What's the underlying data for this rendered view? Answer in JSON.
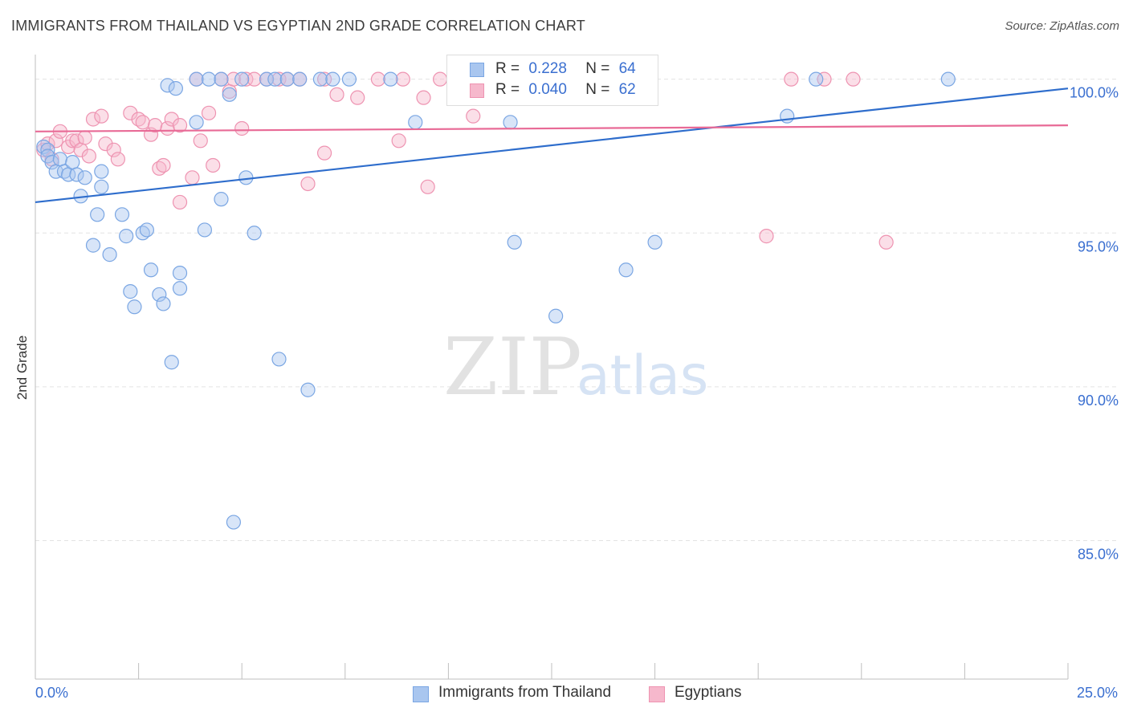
{
  "title": "IMMIGRANTS FROM THAILAND VS EGYPTIAN 2ND GRADE CORRELATION CHART",
  "source": "Source: ZipAtlas.com",
  "watermark": {
    "zip": "ZIP",
    "atlas": "atlas"
  },
  "legend": {
    "rows": [
      {
        "r_label": "R =",
        "r_value": "0.228",
        "n_label": "N =",
        "n_value": "64"
      },
      {
        "r_label": "R =",
        "r_value": "0.040",
        "n_label": "N =",
        "n_value": "62"
      }
    ]
  },
  "bottom_legend": [
    "Immigrants from Thailand",
    "Egyptians"
  ],
  "colors": {
    "thailand_fill": "#a9c6ef",
    "thailand_stroke": "#7aa6e3",
    "thailand_line": "#2e6dcc",
    "egypt_fill": "#f6b8cc",
    "egypt_stroke": "#ee93b1",
    "egypt_line": "#e86a96",
    "axis_text": "#3a6fd0",
    "grid": "#e3e3e3"
  },
  "chart_data": {
    "type": "scatter",
    "title": "IMMIGRANTS FROM THAILAND VS EGYPTIAN 2ND GRADE CORRELATION CHART",
    "xlabel": "",
    "ylabel": "2nd Grade",
    "xlim": [
      0,
      25
    ],
    "ylim": [
      80.5,
      100.8
    ],
    "x_tick_labels": [
      "0.0%",
      "25.0%"
    ],
    "y_ticks": [
      85,
      90,
      95,
      100
    ],
    "y_tick_labels": [
      "85.0%",
      "90.0%",
      "95.0%",
      "100.0%"
    ],
    "series": [
      {
        "name": "Immigrants from Thailand",
        "R": 0.228,
        "N": 64,
        "trend": [
          [
            0,
            96.0
          ],
          [
            25,
            99.7
          ]
        ],
        "points": [
          [
            0.2,
            97.8
          ],
          [
            0.3,
            97.7
          ],
          [
            0.3,
            97.5
          ],
          [
            0.4,
            97.3
          ],
          [
            0.5,
            97.0
          ],
          [
            0.6,
            97.4
          ],
          [
            0.7,
            97.0
          ],
          [
            0.8,
            96.9
          ],
          [
            0.9,
            97.3
          ],
          [
            1.0,
            96.9
          ],
          [
            1.2,
            96.8
          ],
          [
            1.1,
            96.2
          ],
          [
            1.6,
            96.5
          ],
          [
            1.6,
            97.0
          ],
          [
            1.5,
            95.6
          ],
          [
            2.1,
            95.6
          ],
          [
            1.4,
            94.6
          ],
          [
            1.8,
            94.3
          ],
          [
            2.2,
            94.9
          ],
          [
            2.6,
            95.0
          ],
          [
            2.7,
            95.1
          ],
          [
            2.8,
            93.8
          ],
          [
            3.5,
            93.7
          ],
          [
            3.5,
            93.2
          ],
          [
            2.3,
            93.1
          ],
          [
            3.0,
            93.0
          ],
          [
            2.4,
            92.6
          ],
          [
            3.1,
            92.7
          ],
          [
            3.3,
            90.8
          ],
          [
            4.1,
            95.1
          ],
          [
            4.5,
            96.1
          ],
          [
            5.3,
            95.0
          ],
          [
            5.1,
            96.8
          ],
          [
            3.9,
            98.6
          ],
          [
            3.2,
            99.8
          ],
          [
            3.4,
            99.7
          ],
          [
            3.9,
            100.0
          ],
          [
            4.2,
            100.0
          ],
          [
            4.7,
            99.5
          ],
          [
            4.5,
            100.0
          ],
          [
            5.0,
            100.0
          ],
          [
            5.6,
            100.0
          ],
          [
            5.8,
            100.0
          ],
          [
            6.1,
            100.0
          ],
          [
            6.4,
            100.0
          ],
          [
            6.9,
            100.0
          ],
          [
            7.2,
            100.0
          ],
          [
            7.6,
            100.0
          ],
          [
            8.6,
            100.0
          ],
          [
            10.4,
            100.0
          ],
          [
            12.0,
            100.0
          ],
          [
            13.3,
            100.0
          ],
          [
            9.2,
            98.6
          ],
          [
            11.5,
            98.6
          ],
          [
            5.9,
            90.9
          ],
          [
            6.6,
            89.9
          ],
          [
            4.8,
            85.6
          ],
          [
            11.6,
            94.7
          ],
          [
            15.0,
            94.7
          ],
          [
            14.3,
            93.8
          ],
          [
            12.6,
            92.3
          ],
          [
            18.2,
            98.8
          ],
          [
            18.9,
            100.0
          ],
          [
            22.1,
            100.0
          ]
        ]
      },
      {
        "name": "Egyptians",
        "R": 0.04,
        "N": 62,
        "trend": [
          [
            0,
            98.3
          ],
          [
            25,
            98.5
          ]
        ],
        "points": [
          [
            0.2,
            97.7
          ],
          [
            0.3,
            97.9
          ],
          [
            0.4,
            97.4
          ],
          [
            0.5,
            98.0
          ],
          [
            0.6,
            98.3
          ],
          [
            0.8,
            97.8
          ],
          [
            0.9,
            98.0
          ],
          [
            1.0,
            98.0
          ],
          [
            1.1,
            97.7
          ],
          [
            1.2,
            98.1
          ],
          [
            1.3,
            97.5
          ],
          [
            1.4,
            98.7
          ],
          [
            1.6,
            98.8
          ],
          [
            1.7,
            97.9
          ],
          [
            1.9,
            97.7
          ],
          [
            2.0,
            97.4
          ],
          [
            2.3,
            98.9
          ],
          [
            2.5,
            98.7
          ],
          [
            2.6,
            98.6
          ],
          [
            2.8,
            98.2
          ],
          [
            2.9,
            98.5
          ],
          [
            3.0,
            97.1
          ],
          [
            3.1,
            97.2
          ],
          [
            3.2,
            98.4
          ],
          [
            3.3,
            98.7
          ],
          [
            3.5,
            98.5
          ],
          [
            3.5,
            96.0
          ],
          [
            3.9,
            100.0
          ],
          [
            3.8,
            96.8
          ],
          [
            4.0,
            98.0
          ],
          [
            4.2,
            98.9
          ],
          [
            4.3,
            97.2
          ],
          [
            4.5,
            100.0
          ],
          [
            4.7,
            99.6
          ],
          [
            4.8,
            100.0
          ],
          [
            5.0,
            98.4
          ],
          [
            5.1,
            100.0
          ],
          [
            5.3,
            100.0
          ],
          [
            5.6,
            100.0
          ],
          [
            5.9,
            100.0
          ],
          [
            6.1,
            100.0
          ],
          [
            6.4,
            100.0
          ],
          [
            7.0,
            100.0
          ],
          [
            7.0,
            97.6
          ],
          [
            6.6,
            96.6
          ],
          [
            7.3,
            99.5
          ],
          [
            7.8,
            99.4
          ],
          [
            8.3,
            100.0
          ],
          [
            8.8,
            98.0
          ],
          [
            8.9,
            100.0
          ],
          [
            9.4,
            99.4
          ],
          [
            9.5,
            96.5
          ],
          [
            9.8,
            100.0
          ],
          [
            10.6,
            98.8
          ],
          [
            11.1,
            100.0
          ],
          [
            12.5,
            100.0
          ],
          [
            13.2,
            99.9
          ],
          [
            17.7,
            94.9
          ],
          [
            18.3,
            100.0
          ],
          [
            19.1,
            100.0
          ],
          [
            19.8,
            100.0
          ],
          [
            20.6,
            94.7
          ]
        ]
      }
    ]
  }
}
